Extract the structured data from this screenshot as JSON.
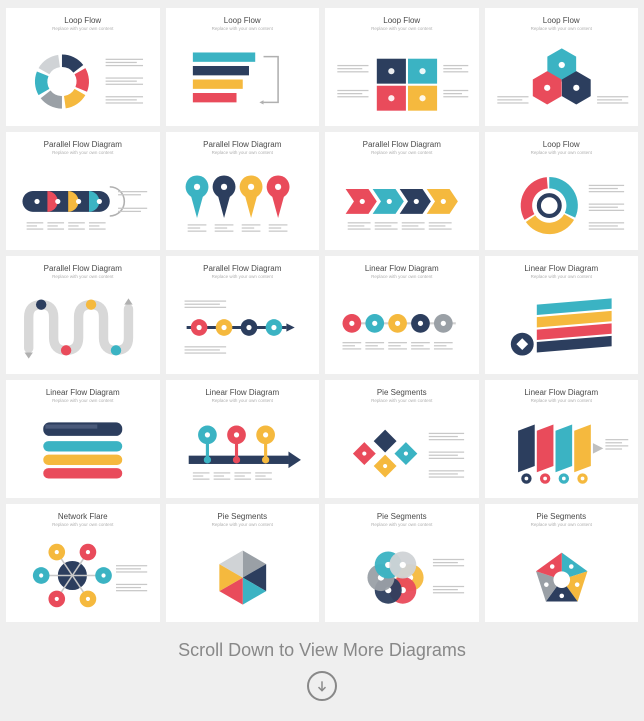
{
  "palette": {
    "red": "#e94b5b",
    "yellow": "#f5b93e",
    "teal": "#3bb3c3",
    "navy": "#2c3e5e",
    "grey": "#9aa0a6",
    "light": "#d0d3d6"
  },
  "footer": {
    "text": "Scroll Down to View More Diagrams"
  },
  "cards": [
    {
      "title": "Loop Flow",
      "kind": "donut-arrows"
    },
    {
      "title": "Loop Flow",
      "kind": "bars-loop"
    },
    {
      "title": "Loop Flow",
      "kind": "puzzle-4"
    },
    {
      "title": "Loop Flow",
      "kind": "hex-3"
    },
    {
      "title": "Parallel Flow Diagram",
      "kind": "pill-arcs"
    },
    {
      "title": "Parallel Flow Diagram",
      "kind": "pin-drops"
    },
    {
      "title": "Parallel Flow Diagram",
      "kind": "chevron-row"
    },
    {
      "title": "Loop Flow",
      "kind": "ring-3"
    },
    {
      "title": "Parallel Flow Diagram",
      "kind": "serpentine"
    },
    {
      "title": "Parallel Flow Diagram",
      "kind": "timeline-dots"
    },
    {
      "title": "Linear Flow Diagram",
      "kind": "circle-row"
    },
    {
      "title": "Linear Flow Diagram",
      "kind": "ribbon-stack"
    },
    {
      "title": "Linear Flow Diagram",
      "kind": "bar-stack"
    },
    {
      "title": "Linear Flow Diagram",
      "kind": "pin-timeline"
    },
    {
      "title": "Pie Segments",
      "kind": "diamond-4"
    },
    {
      "title": "Linear Flow Diagram",
      "kind": "iso-panels"
    },
    {
      "title": "Network Flare",
      "kind": "network"
    },
    {
      "title": "Pie Segments",
      "kind": "hex-6"
    },
    {
      "title": "Pie Segments",
      "kind": "petal-6"
    },
    {
      "title": "Pie Segments",
      "kind": "pentagon"
    }
  ]
}
